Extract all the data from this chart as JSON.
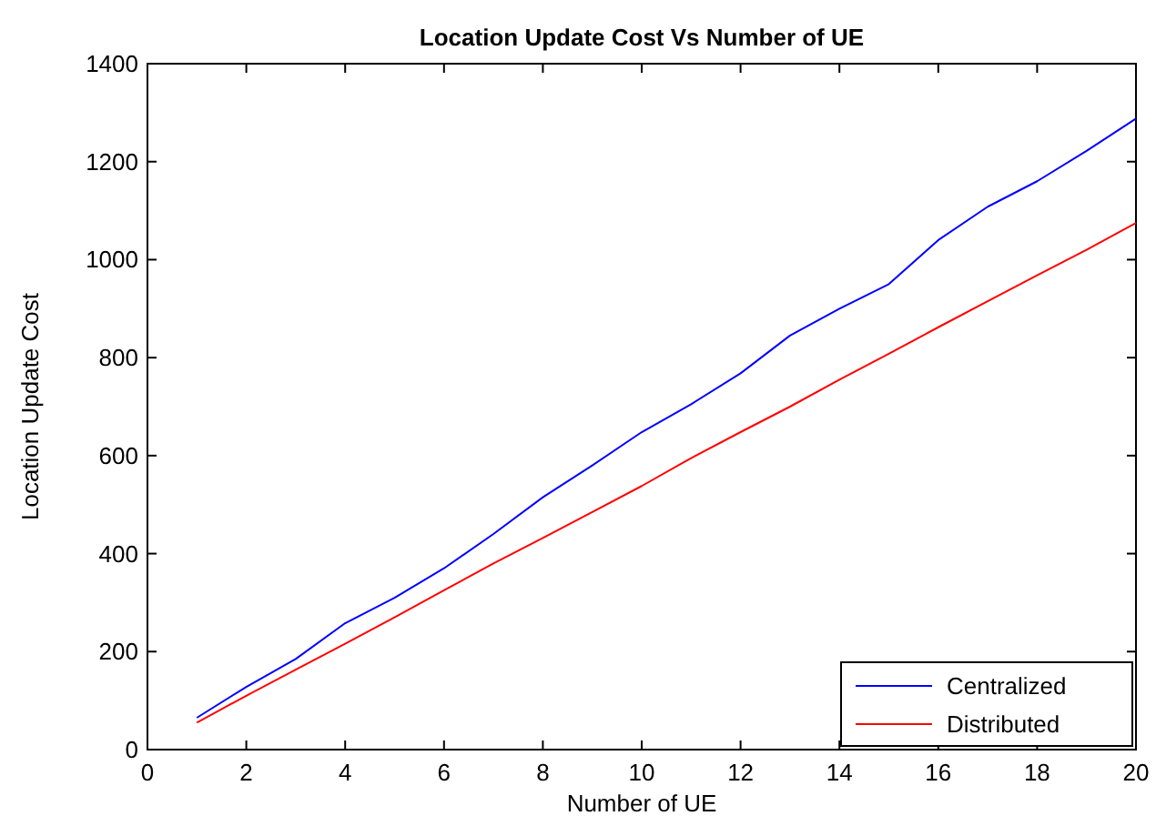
{
  "chart_data": {
    "type": "line",
    "title": "Location Update Cost Vs Number of UE",
    "xlabel": "Number of UE",
    "ylabel": "Location Update Cost",
    "x": [
      1,
      2,
      3,
      4,
      5,
      6,
      7,
      8,
      9,
      10,
      11,
      12,
      13,
      14,
      15,
      16,
      17,
      18,
      19,
      20
    ],
    "series": [
      {
        "name": "Centralized",
        "color": "#0000ff",
        "values": [
          65,
          128,
          185,
          258,
          310,
          370,
          440,
          515,
          580,
          648,
          705,
          768,
          845,
          900,
          950,
          1040,
          1108,
          1160,
          1222,
          1288
        ]
      },
      {
        "name": "Distributed",
        "color": "#ff0000",
        "values": [
          55,
          110,
          163,
          216,
          270,
          325,
          380,
          432,
          485,
          538,
          595,
          648,
          700,
          755,
          808,
          862,
          915,
          968,
          1020,
          1075
        ]
      }
    ],
    "xlim": [
      0,
      20
    ],
    "xticks": [
      0,
      2,
      4,
      6,
      8,
      10,
      12,
      14,
      16,
      18,
      20
    ],
    "ylim": [
      0,
      1400
    ],
    "yticks": [
      0,
      200,
      400,
      600,
      800,
      1000,
      1200,
      1400
    ],
    "grid": false,
    "legend": "bottom right",
    "marker": "none",
    "line_style": "solid"
  }
}
